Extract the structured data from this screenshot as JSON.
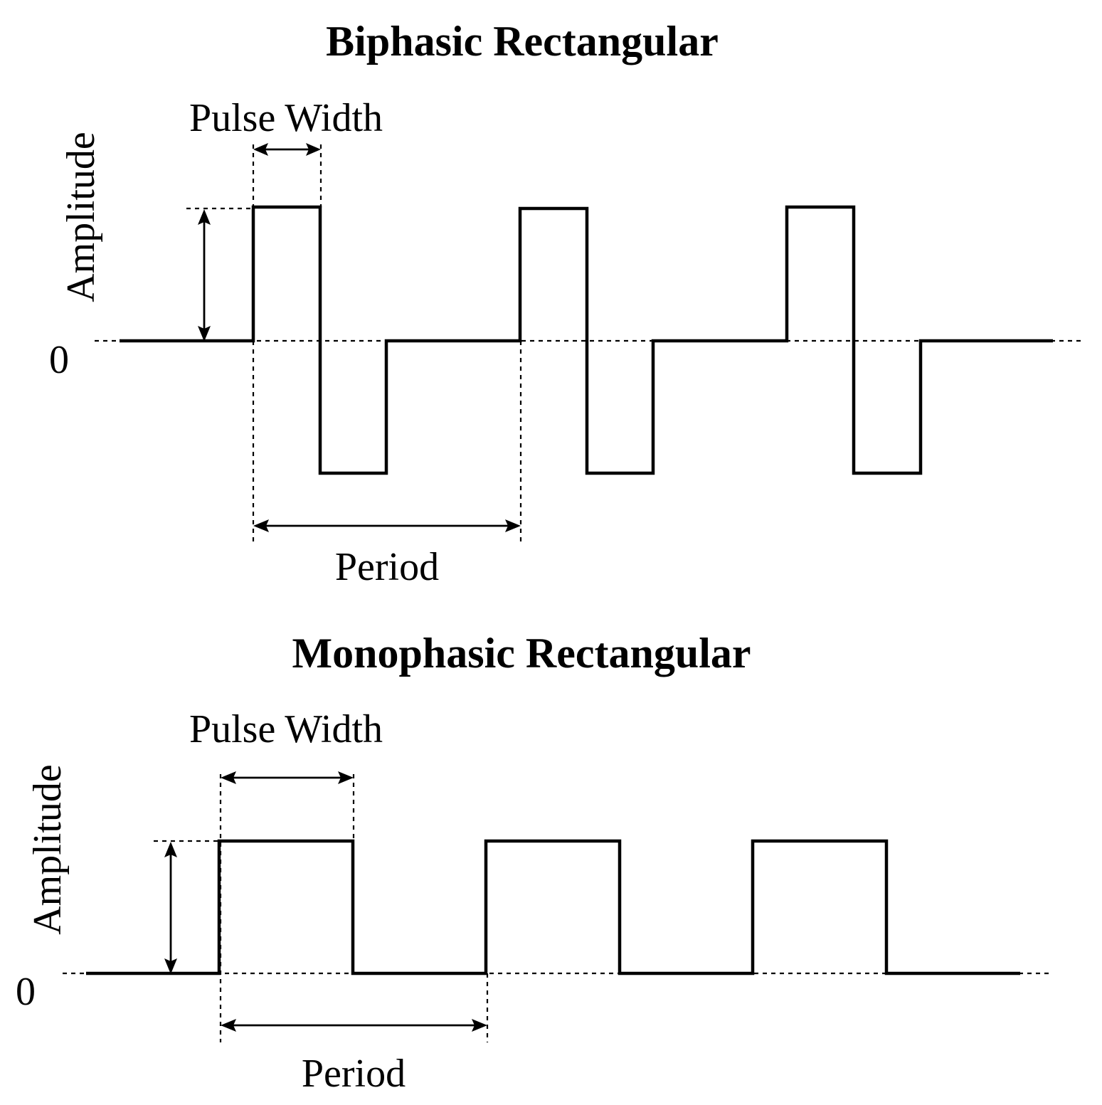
{
  "diagrams": [
    {
      "id": "biphasic",
      "title": "Biphasic Rectangular",
      "labels": {
        "pulse_width": "Pulse Width",
        "amplitude": "Amplitude",
        "zero": "0",
        "period": "Period"
      },
      "waveform": "biphasic",
      "pulse_count": 3
    },
    {
      "id": "monophasic",
      "title": "Monophasic Rectangular",
      "labels": {
        "pulse_width": "Pulse Width",
        "amplitude": "Amplitude",
        "zero": "0",
        "period": "Period"
      },
      "waveform": "monophasic",
      "pulse_count": 3
    }
  ]
}
